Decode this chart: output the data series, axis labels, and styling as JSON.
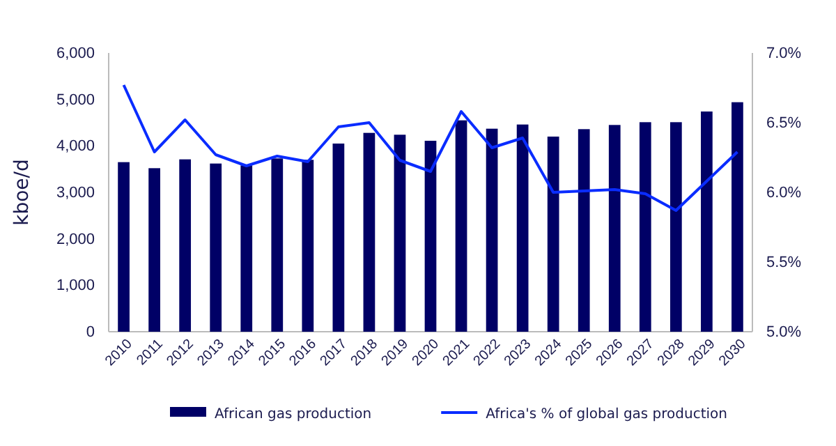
{
  "chart_data": {
    "type": "bar",
    "ylabel": "kboe/d",
    "categories": [
      "2010",
      "2011",
      "2012",
      "2013",
      "2014",
      "2015",
      "2016",
      "2017",
      "2018",
      "2019",
      "2020",
      "2021",
      "2022",
      "2023",
      "2024",
      "2025",
      "2026",
      "2027",
      "2028",
      "2029",
      "2030"
    ],
    "series": [
      {
        "name": "African gas production",
        "color": "#000066",
        "values": [
          3650,
          3520,
          3710,
          3620,
          3580,
          3730,
          3700,
          4050,
          4280,
          4240,
          4110,
          4550,
          4370,
          4460,
          4200,
          4360,
          4450,
          4510,
          4510,
          4740,
          4940
        ]
      },
      {
        "name": "Africa's % of global gas production",
        "type": "line",
        "axis": "y2",
        "color": "#0a2cff",
        "values": [
          6.77,
          6.29,
          6.52,
          6.27,
          6.19,
          6.26,
          6.22,
          6.47,
          6.5,
          6.23,
          6.15,
          6.58,
          6.32,
          6.39,
          6.0,
          6.01,
          6.02,
          5.99,
          5.87,
          6.08,
          6.29
        ]
      }
    ],
    "ylim": [
      0,
      6000
    ],
    "yticks": [
      0,
      {
        "value": 1000,
        "label": "1,000"
      },
      {
        "value": 2000,
        "label": "2,000"
      },
      {
        "value": 3000,
        "label": "3,000"
      },
      {
        "value": 4000,
        "label": "4,000"
      },
      {
        "value": 5000,
        "label": "5,000"
      },
      {
        "value": 6000,
        "label": "6,000"
      }
    ],
    "y2lim": [
      5,
      7
    ],
    "y2ticks": [
      {
        "value": 5,
        "label": "5.0%"
      },
      {
        "value": 5.5,
        "label": "5.5%"
      },
      {
        "value": 6,
        "label": "6.0%"
      },
      {
        "value": 6.5,
        "label": "6.5%"
      },
      {
        "value": 7,
        "label": "7.0%"
      }
    ],
    "legend": "bottom",
    "grid": false,
    "marker": "none",
    "line_style": "solid"
  }
}
